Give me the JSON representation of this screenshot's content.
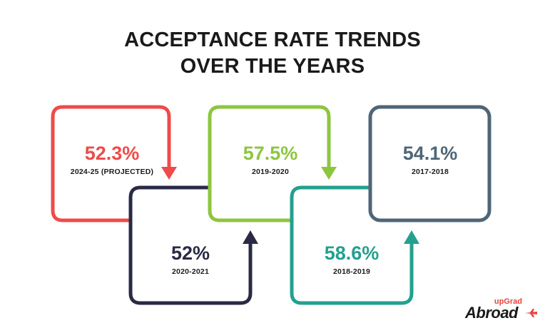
{
  "title": {
    "line1": "ACCEPTANCE RATE TRENDS",
    "line2": "OVER THE YEARS"
  },
  "stats": [
    {
      "value": "52.3%",
      "period": "2024-25 (PROJECTED)",
      "color": "#ee4b49"
    },
    {
      "value": "52%",
      "period": "2020-2021",
      "color": "#2a2a45"
    },
    {
      "value": "57.5%",
      "period": "2019-2020",
      "color": "#8cc63f"
    },
    {
      "value": "58.6%",
      "period": "2018-2019",
      "color": "#24a08f"
    },
    {
      "value": "54.1%",
      "period": "2017-2018",
      "color": "#4e6677"
    }
  ],
  "logo": {
    "top": "upGrad",
    "bottom": "Abroad",
    "icon": "airplane-icon",
    "accent": "#e8413f"
  }
}
